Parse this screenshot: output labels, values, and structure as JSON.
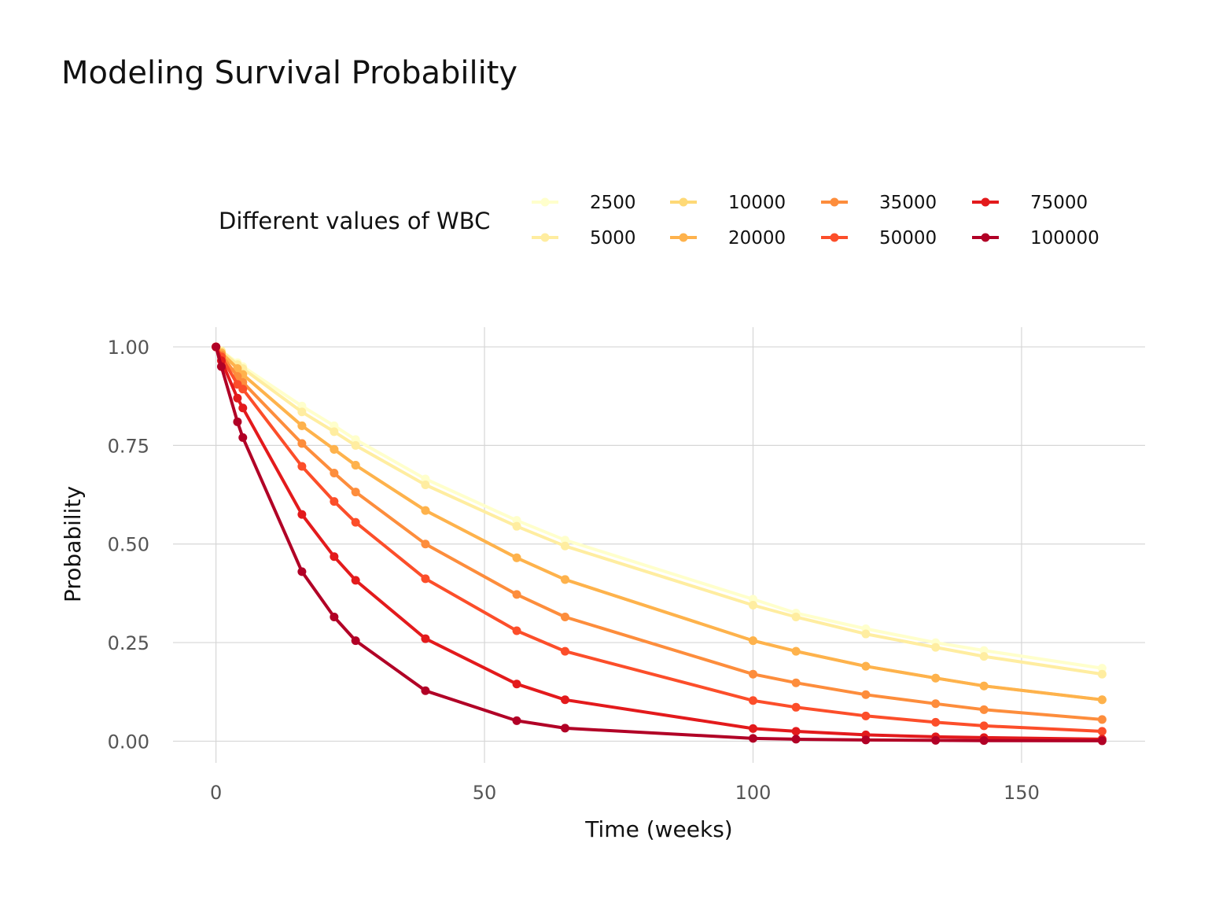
{
  "title": "Modeling Survival Probability",
  "chart_data": {
    "type": "line",
    "title": "Modeling Survival Probability",
    "xlabel": "Time (weeks)",
    "ylabel": "Probability",
    "xlim": [
      -8,
      173
    ],
    "ylim": [
      -0.055,
      1.05
    ],
    "xticks": [
      0,
      50,
      100,
      150
    ],
    "xtick_labels": [
      "0",
      "50",
      "100",
      "150"
    ],
    "yticks": [
      0,
      0.25,
      0.5,
      0.75,
      1.0
    ],
    "ytick_labels": [
      "0.00",
      "0.25",
      "0.50",
      "0.75",
      "1.00"
    ],
    "grid": true,
    "legend": {
      "title": "Different values of WBC",
      "position": "top"
    },
    "x": [
      0,
      1,
      4,
      5,
      16,
      22,
      26,
      39,
      56,
      65,
      100,
      108,
      121,
      134,
      143,
      165
    ],
    "series": [
      {
        "name": "2500",
        "color": "#FFFFCC",
        "values": [
          1.0,
          0.99,
          0.96,
          0.95,
          0.85,
          0.8,
          0.765,
          0.665,
          0.56,
          0.51,
          0.36,
          0.325,
          0.285,
          0.25,
          0.23,
          0.185
        ]
      },
      {
        "name": "5000",
        "color": "#FFEDA0",
        "values": [
          1.0,
          0.99,
          0.955,
          0.945,
          0.835,
          0.785,
          0.75,
          0.65,
          0.545,
          0.495,
          0.345,
          0.315,
          0.272,
          0.238,
          0.215,
          0.17
        ]
      },
      {
        "name": "10000",
        "color": "#FED976",
        "values": [
          1.0,
          0.985,
          0.945,
          0.93,
          0.8,
          0.74,
          0.7,
          0.585,
          0.465,
          0.41,
          0.255,
          0.228,
          0.19,
          0.16,
          0.14,
          0.105
        ]
      },
      {
        "name": "20000",
        "color": "#FEB24C",
        "values": [
          1.0,
          0.985,
          0.945,
          0.93,
          0.8,
          0.74,
          0.7,
          0.585,
          0.465,
          0.41,
          0.255,
          0.228,
          0.19,
          0.16,
          0.14,
          0.105
        ]
      },
      {
        "name": "35000",
        "color": "#FD8D3C",
        "values": [
          1.0,
          0.98,
          0.925,
          0.91,
          0.755,
          0.68,
          0.632,
          0.5,
          0.372,
          0.315,
          0.17,
          0.148,
          0.118,
          0.095,
          0.08,
          0.055
        ]
      },
      {
        "name": "50000",
        "color": "#FC4E2A",
        "values": [
          1.0,
          0.975,
          0.905,
          0.893,
          0.697,
          0.608,
          0.555,
          0.412,
          0.28,
          0.228,
          0.103,
          0.086,
          0.064,
          0.048,
          0.039,
          0.025
        ]
      },
      {
        "name": "75000",
        "color": "#E31A1C",
        "values": [
          1.0,
          0.965,
          0.87,
          0.845,
          0.575,
          0.468,
          0.408,
          0.26,
          0.145,
          0.105,
          0.032,
          0.025,
          0.016,
          0.011,
          0.009,
          0.005
        ]
      },
      {
        "name": "100000",
        "color": "#B10026",
        "values": [
          1.0,
          0.95,
          0.81,
          0.77,
          0.43,
          0.315,
          0.255,
          0.128,
          0.052,
          0.033,
          0.007,
          0.005,
          0.003,
          0.002,
          0.0015,
          0.001
        ]
      }
    ]
  }
}
